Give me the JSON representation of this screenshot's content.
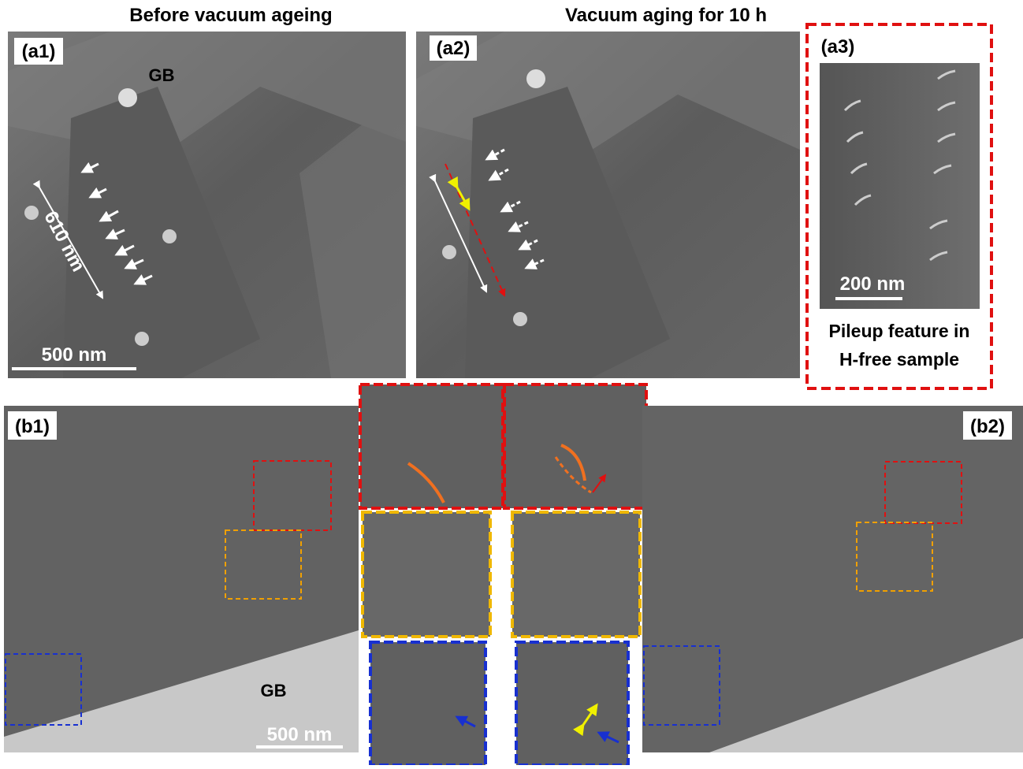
{
  "header": {
    "left_title": "Before vacuum ageing",
    "right_title": "Vacuum aging for 10 h"
  },
  "panels": {
    "a1": {
      "label": "(a1)",
      "annotation": "GB",
      "measure": "610 nm",
      "scale_bar": "500 nm"
    },
    "a2": {
      "label": "(a2)"
    },
    "a3": {
      "label": "(a3)",
      "scale_bar": "200 nm",
      "caption_line1": "Pileup feature in",
      "caption_line2": "H-free sample"
    },
    "b1": {
      "label": "(b1)",
      "annotation": "GB",
      "scale_bar": "500 nm"
    },
    "b2": {
      "label": "(b2)"
    }
  }
}
